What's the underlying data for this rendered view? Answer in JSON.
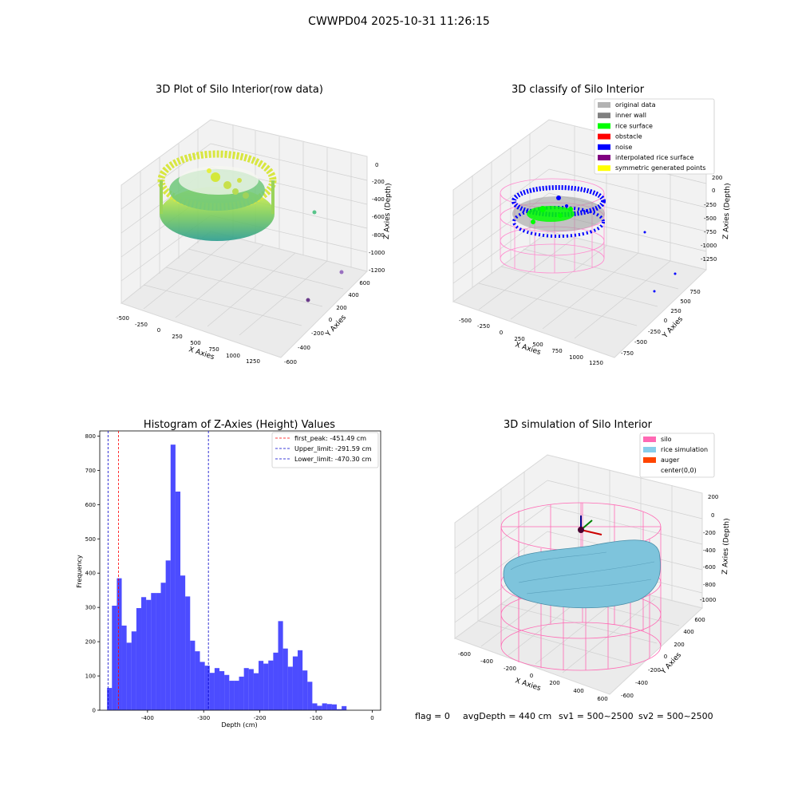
{
  "suptitle": "CWWPD04 2025-10-31 11:26:15",
  "footer": {
    "flag": "flag = 0",
    "avgdepth": "avgDepth = 440 cm",
    "sv1": "sv1 = 500~2500",
    "sv2": "sv2 = 500~2500"
  },
  "panels": {
    "raw": {
      "title": "3D Plot of Silo Interior(row data)",
      "xlabel": "X Axies",
      "ylabel": "Y Axies",
      "zlabel": "Z Axies (Depth)",
      "xticks": [
        "-500",
        "-250",
        "0",
        "250",
        "500",
        "750",
        "1000",
        "1250"
      ],
      "yticks": [
        "-600",
        "-400",
        "-200",
        "0",
        "200",
        "400",
        "600"
      ],
      "zticks": [
        "0",
        "-200",
        "-400",
        "-600",
        "-800",
        "-1000",
        "-1200"
      ]
    },
    "classify": {
      "title": "3D classify of Silo Interior",
      "xlabel": "X Axies",
      "ylabel": "Y Axies",
      "zlabel": "Z Axies (Depth)",
      "xticks": [
        "-500",
        "-250",
        "0",
        "250",
        "500",
        "750",
        "1000",
        "1250"
      ],
      "yticks": [
        "-750",
        "-500",
        "-250",
        "0",
        "250",
        "500",
        "750"
      ],
      "zticks": [
        "200",
        "0",
        "-250",
        "-500",
        "-750",
        "-1000",
        "-1250"
      ],
      "legend": [
        {
          "label": "original data",
          "color": "#b3b3b3"
        },
        {
          "label": "inner wall",
          "color": "#808080"
        },
        {
          "label": "rice surface",
          "color": "#00ff00"
        },
        {
          "label": "obstacle",
          "color": "#ff0000"
        },
        {
          "label": "noise",
          "color": "#0000ff"
        },
        {
          "label": "interpolated rice surface",
          "color": "#800080"
        },
        {
          "label": "symmetric generated points",
          "color": "#ffff00"
        }
      ]
    },
    "simulation": {
      "title": "3D simulation of Silo Interior",
      "xlabel": "X Axies",
      "ylabel": "Y Axies",
      "zlabel": "Z Axies (Depth)",
      "xticks": [
        "-600",
        "-400",
        "-200",
        "0",
        "200",
        "400",
        "600"
      ],
      "yticks": [
        "-600",
        "-400",
        "-200",
        "0",
        "200",
        "400",
        "600"
      ],
      "zticks": [
        "200",
        "0",
        "-200",
        "-400",
        "-600",
        "-800",
        "-1000"
      ],
      "legend": [
        {
          "label": "silo",
          "color": "#ff69b4"
        },
        {
          "label": "rice simulation",
          "color": "#87ceeb"
        },
        {
          "label": "auger",
          "color": "#ff4500"
        },
        {
          "label": "center(0,0)",
          "color": "#ffffff"
        }
      ]
    }
  },
  "chart_data": {
    "type": "bar",
    "title": "Histogram of Z-Axies (Height) Values",
    "xlabel": "Depth (cm)",
    "ylabel": "Frequency",
    "xlim": [
      -485,
      15
    ],
    "ylim": [
      0,
      815
    ],
    "xticks": [
      -400,
      -300,
      -200,
      -100,
      0
    ],
    "yticks": [
      0,
      100,
      200,
      300,
      400,
      500,
      600,
      700,
      800
    ],
    "bar_color": "#0000ff",
    "bin_start": -472,
    "bin_width": 8.7,
    "values": [
      65,
      305,
      385,
      247,
      197,
      230,
      298,
      330,
      322,
      342,
      342,
      372,
      437,
      775,
      638,
      393,
      332,
      203,
      172,
      141,
      130,
      109,
      123,
      114,
      103,
      86,
      86,
      98,
      123,
      120,
      108,
      144,
      136,
      145,
      168,
      260,
      180,
      127,
      157,
      175,
      116,
      83,
      20,
      13,
      20,
      18,
      17,
      3,
      12
    ],
    "vlines": [
      {
        "label": "first_peak: -451.49 cm",
        "x": -451.49,
        "color": "#ff0000"
      },
      {
        "label": "Upper_limit: -291.59 cm",
        "x": -291.59,
        "color": "#0000cc"
      },
      {
        "label": "Lower_limit: -470.30 cm",
        "x": -470.3,
        "color": "#0000cc"
      }
    ]
  }
}
